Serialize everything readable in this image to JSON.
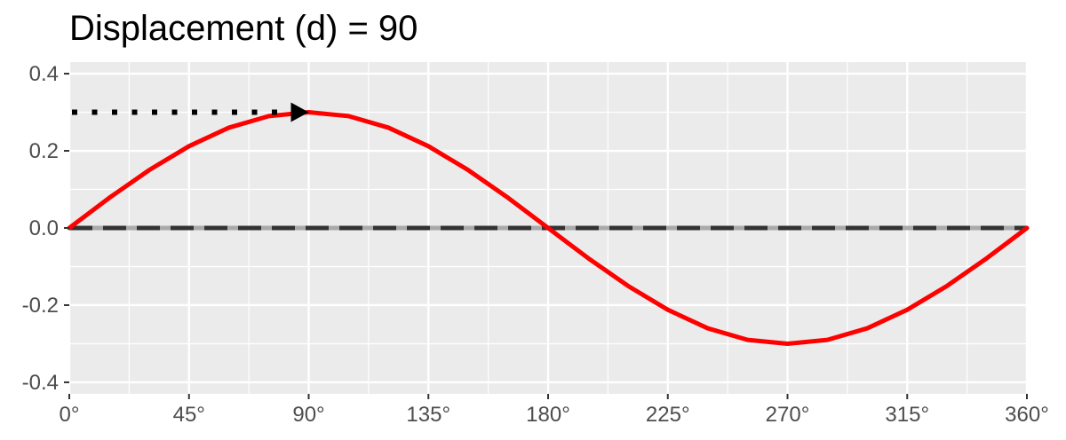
{
  "chart_data": {
    "type": "line",
    "title": "Displacement (d) = 90",
    "xlabel": "",
    "ylabel": "",
    "xlim": [
      0,
      360
    ],
    "ylim": [
      -0.43,
      0.43
    ],
    "x_ticks": [
      0,
      45,
      90,
      135,
      180,
      225,
      270,
      315,
      360
    ],
    "x_tick_labels": [
      "0°",
      "45°",
      "90°",
      "135°",
      "180°",
      "225°",
      "270°",
      "315°",
      "360°"
    ],
    "y_ticks": [
      -0.4,
      -0.2,
      0.0,
      0.2,
      0.4
    ],
    "y_tick_labels": [
      "-0.4",
      "-0.2",
      "0.0",
      "0.2",
      "0.4"
    ],
    "grid": true,
    "amplitude": 0.3,
    "displacement": 90,
    "series": [
      {
        "color": "#ff0000",
        "x": [
          0,
          15,
          30,
          45,
          60,
          75,
          90,
          105,
          120,
          135,
          150,
          165,
          180,
          195,
          210,
          225,
          240,
          255,
          270,
          285,
          300,
          315,
          330,
          345,
          360
        ],
        "y": [
          0,
          0.078,
          0.15,
          0.212,
          0.26,
          0.29,
          0.3,
          0.29,
          0.26,
          0.212,
          0.15,
          0.078,
          0,
          -0.078,
          -0.15,
          -0.212,
          -0.26,
          -0.29,
          -0.3,
          -0.29,
          -0.26,
          -0.212,
          -0.15,
          -0.078,
          0
        ]
      }
    ],
    "baseline": {
      "y": 0,
      "style": "dashed",
      "color": "#333333",
      "under_color": "#aaaaaa"
    },
    "arrow": {
      "from_x": 0,
      "to_x": 90,
      "y": 0.3,
      "style": "dotted",
      "color": "#000000"
    }
  }
}
